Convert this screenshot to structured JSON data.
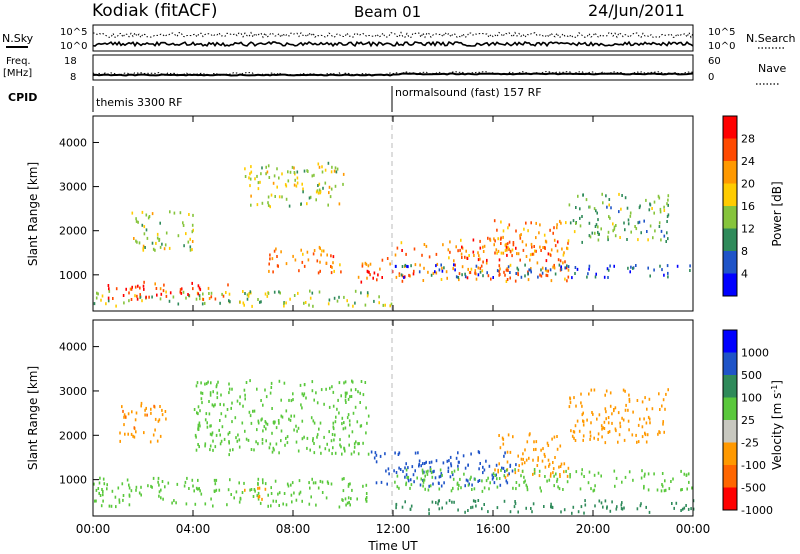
{
  "header": {
    "station": "Kodiak (fitACF)",
    "beam": "Beam 01",
    "date": "24/Jun/2011"
  },
  "left_labels": {
    "nsky": "N.Sky",
    "freq_line1": "Freq.",
    "freq_line2": "[MHz]",
    "cpid": "CPID"
  },
  "right_labels": {
    "nsearch": "N.Search",
    "nave": "Nave"
  },
  "cpid_segments": [
    {
      "label": "themis 3300 RF",
      "start_hour": 0
    },
    {
      "label": "normalsound (fast) 157 RF",
      "start_hour": 12
    }
  ],
  "chart_data": [
    {
      "type": "line",
      "panel": "noise",
      "y_ticks_left": [
        "10^5",
        "10^0"
      ],
      "y_ticks_right": [
        "10^5",
        "10^0"
      ],
      "series_names": [
        "N.Sky",
        "N.Search"
      ]
    },
    {
      "type": "line",
      "panel": "frequency-nave",
      "y_ticks_left": [
        "18",
        "8"
      ],
      "y_ticks_right": [
        "60",
        "0"
      ],
      "ylim_left": [
        8,
        18
      ],
      "ylim_right": [
        0,
        60
      ],
      "freq_mhz_before_1200": 10.0,
      "freq_mhz_after_1200": 10.4
    },
    {
      "type": "heatmap",
      "panel": "power",
      "xlabel": "",
      "ylabel": "Slant Range [km]",
      "xlim_hours": [
        0,
        24
      ],
      "ylim": [
        180,
        4600
      ],
      "y_ticks": [
        "4000",
        "3000",
        "2000",
        "1000"
      ],
      "colorbar_label": "Power [dB]",
      "colorbar_ticks": [
        "28",
        "24",
        "20",
        "16",
        "12",
        "8",
        "4"
      ],
      "colorbar_colors": [
        "#0000ff",
        "#1f54c8",
        "#2f8a5a",
        "#86c43c",
        "#ffcc00",
        "#ff9900",
        "#ff4a00",
        "#ff0000"
      ],
      "echo_regions": [
        {
          "t0": 0.0,
          "t1": 12.0,
          "r0": 250,
          "r1": 600,
          "power_db": 14
        },
        {
          "t0": 0.5,
          "t1": 5.5,
          "r0": 400,
          "r1": 800,
          "power_db": 28
        },
        {
          "t0": 1.5,
          "t1": 4.0,
          "r0": 1500,
          "r1": 2400,
          "power_db": 16
        },
        {
          "t0": 6.0,
          "t1": 10.0,
          "r0": 2500,
          "r1": 3500,
          "power_db": 16
        },
        {
          "t0": 7.0,
          "t1": 10.0,
          "r0": 1000,
          "r1": 1600,
          "power_db": 24
        },
        {
          "t0": 10.5,
          "t1": 12.0,
          "r0": 800,
          "r1": 1400,
          "power_db": 26
        },
        {
          "t0": 12.0,
          "t1": 19.0,
          "r0": 800,
          "r1": 1800,
          "power_db": 24
        },
        {
          "t0": 16.0,
          "t1": 19.0,
          "r0": 1400,
          "r1": 2200,
          "power_db": 22
        },
        {
          "t0": 19.0,
          "t1": 23.0,
          "r0": 1700,
          "r1": 2800,
          "power_db": 12
        },
        {
          "t0": 12.0,
          "t1": 24.0,
          "r0": 900,
          "r1": 1200,
          "power_db": 6
        }
      ]
    },
    {
      "type": "heatmap",
      "panel": "velocity",
      "xlabel": "Time UT",
      "ylabel": "Slant Range [km]",
      "xlim_hours": [
        0,
        24
      ],
      "x_ticks": [
        "00:00",
        "04:00",
        "08:00",
        "12:00",
        "16:00",
        "20:00",
        "00:00"
      ],
      "ylim": [
        180,
        4600
      ],
      "y_ticks": [
        "4000",
        "3000",
        "2000",
        "1000"
      ],
      "colorbar_label": "Velocity [m s",
      "colorbar_label_sup": "-1",
      "colorbar_label_end": "]",
      "colorbar_ticks": [
        "1000",
        "500",
        "100",
        "25",
        "-25",
        "-100",
        "-500",
        "-1000"
      ],
      "colorbar_colors": [
        "#ff0000",
        "#ff6600",
        "#ff9900",
        "#c8c8c0",
        "#5ac83c",
        "#2f8a5a",
        "#1f54c8",
        "#0000ff"
      ],
      "echo_regions": [
        {
          "t0": 0.0,
          "t1": 11.0,
          "r0": 350,
          "r1": 1000,
          "velocity": 0
        },
        {
          "t0": 1.0,
          "t1": 3.0,
          "r0": 1800,
          "r1": 2700,
          "velocity": -400
        },
        {
          "t0": 4.0,
          "t1": 11.0,
          "r0": 1500,
          "r1": 3200,
          "velocity": 0
        },
        {
          "t0": 6.0,
          "t1": 7.0,
          "r0": 500,
          "r1": 800,
          "velocity": -300
        },
        {
          "t0": 11.0,
          "t1": 17.0,
          "r0": 800,
          "r1": 1600,
          "velocity": 200
        },
        {
          "t0": 16.0,
          "t1": 19.0,
          "r0": 1000,
          "r1": 2000,
          "velocity": -200
        },
        {
          "t0": 19.0,
          "t1": 23.0,
          "r0": 1800,
          "r1": 3000,
          "velocity": -200
        },
        {
          "t0": 12.0,
          "t1": 24.0,
          "r0": 200,
          "r1": 500,
          "velocity": 60
        },
        {
          "t0": 12.0,
          "t1": 24.0,
          "r0": 700,
          "r1": 1200,
          "velocity": 0
        }
      ]
    }
  ]
}
